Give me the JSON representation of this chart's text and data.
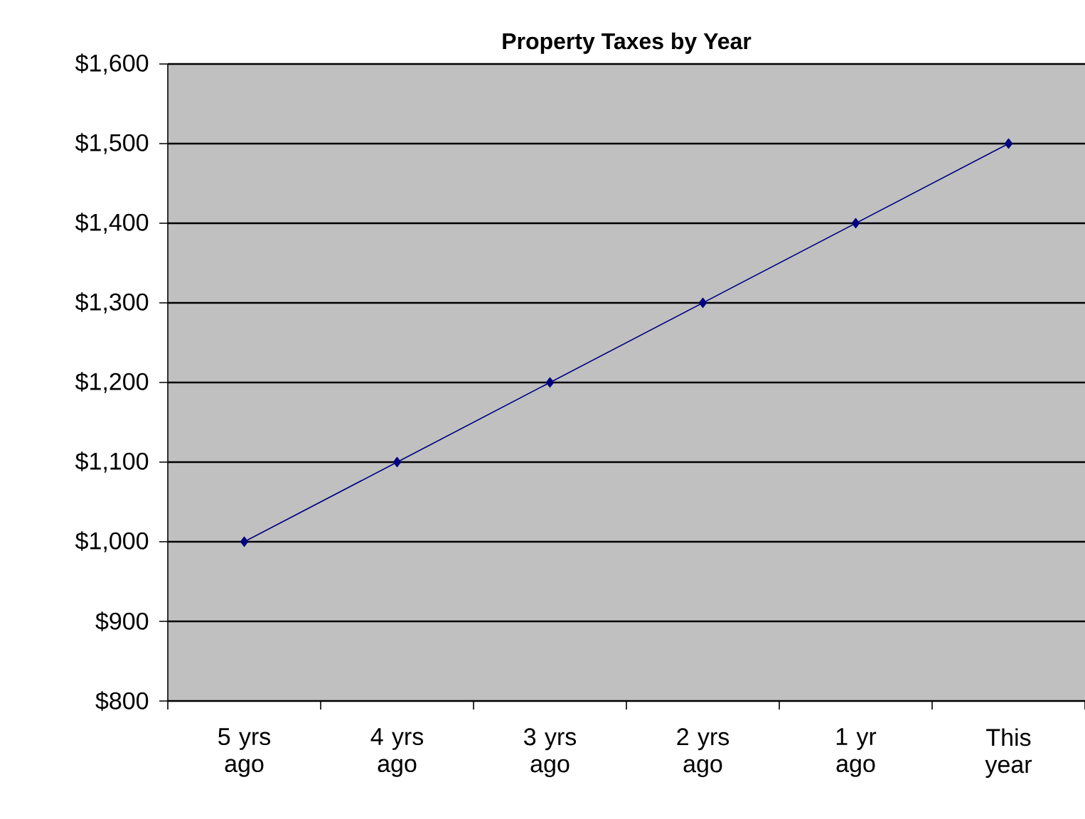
{
  "chart_data": {
    "type": "line",
    "title": "Property Taxes by Year",
    "categories": [
      "5 yrs ago",
      "4 yrs ago",
      "3 yrs ago",
      "2 yrs ago",
      "1 yr ago",
      "This year"
    ],
    "series": [
      {
        "color": "#000080",
        "values": [
          1000,
          1100,
          1200,
          1300,
          1400,
          1500
        ]
      }
    ],
    "ylim": [
      800,
      1600
    ],
    "yticks": [
      {
        "value": 800,
        "label": "$800"
      },
      {
        "value": 900,
        "label": "$900"
      },
      {
        "value": 1000,
        "label": "$1,000"
      },
      {
        "value": 1100,
        "label": "$1,100"
      },
      {
        "value": 1200,
        "label": "$1,200"
      },
      {
        "value": 1300,
        "label": "$1,300"
      },
      {
        "value": 1400,
        "label": "$1,400"
      },
      {
        "value": 1500,
        "label": "$1,500"
      },
      {
        "value": 1600,
        "label": "$1,600"
      }
    ],
    "grid": "y",
    "marker": "diamond",
    "line_style": "solid"
  }
}
